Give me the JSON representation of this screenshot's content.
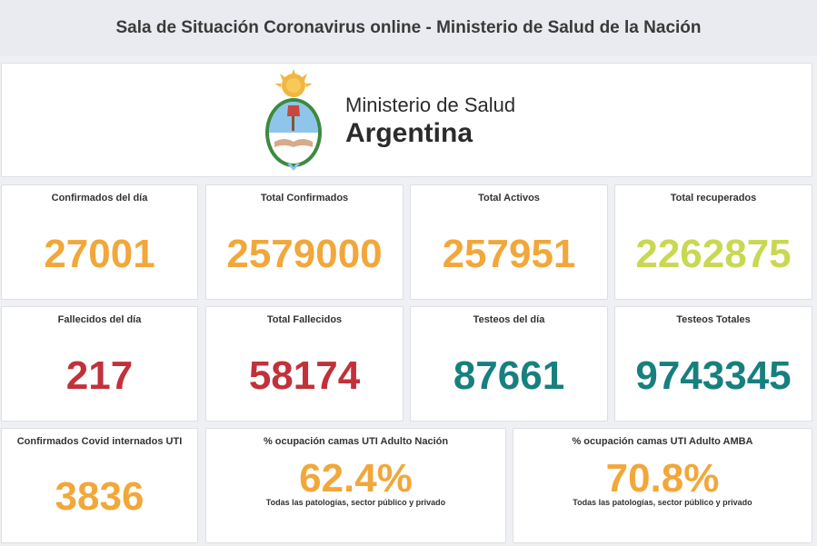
{
  "header": {
    "title": "Sala de Situación Coronavirus online - Ministerio de Salud de la Nación"
  },
  "logo": {
    "line1": "Ministerio de Salud",
    "line2": "Argentina",
    "icon": "coat-of-arms-icon"
  },
  "colors": {
    "orange": "#f2a73a",
    "lime": "#c9d852",
    "red": "#c2313a",
    "teal": "#17807f"
  },
  "row1": [
    {
      "label": "Confirmados del día",
      "value": "27001"
    },
    {
      "label": "Total Confirmados",
      "value": "2579000"
    },
    {
      "label": "Total Activos",
      "value": "257951"
    },
    {
      "label": "Total recuperados",
      "value": "2262875"
    }
  ],
  "row2": [
    {
      "label": "Fallecidos del día",
      "value": "217"
    },
    {
      "label": "Total Fallecidos",
      "value": "58174"
    },
    {
      "label": "Testeos del día",
      "value": "87661"
    },
    {
      "label": "Testeos Totales",
      "value": "9743345"
    }
  ],
  "row3": [
    {
      "label": "Confirmados Covid internados UTI",
      "value": "3836"
    },
    {
      "label": "% ocupación camas UTI Adulto Nación",
      "value": "62.4%",
      "sublabel": "Todas las patologías, sector público y privado"
    },
    {
      "label": "% ocupación camas UTI Adulto AMBA",
      "value": "70.8%",
      "sublabel": "Todas las patologías, sector público y privado"
    }
  ]
}
